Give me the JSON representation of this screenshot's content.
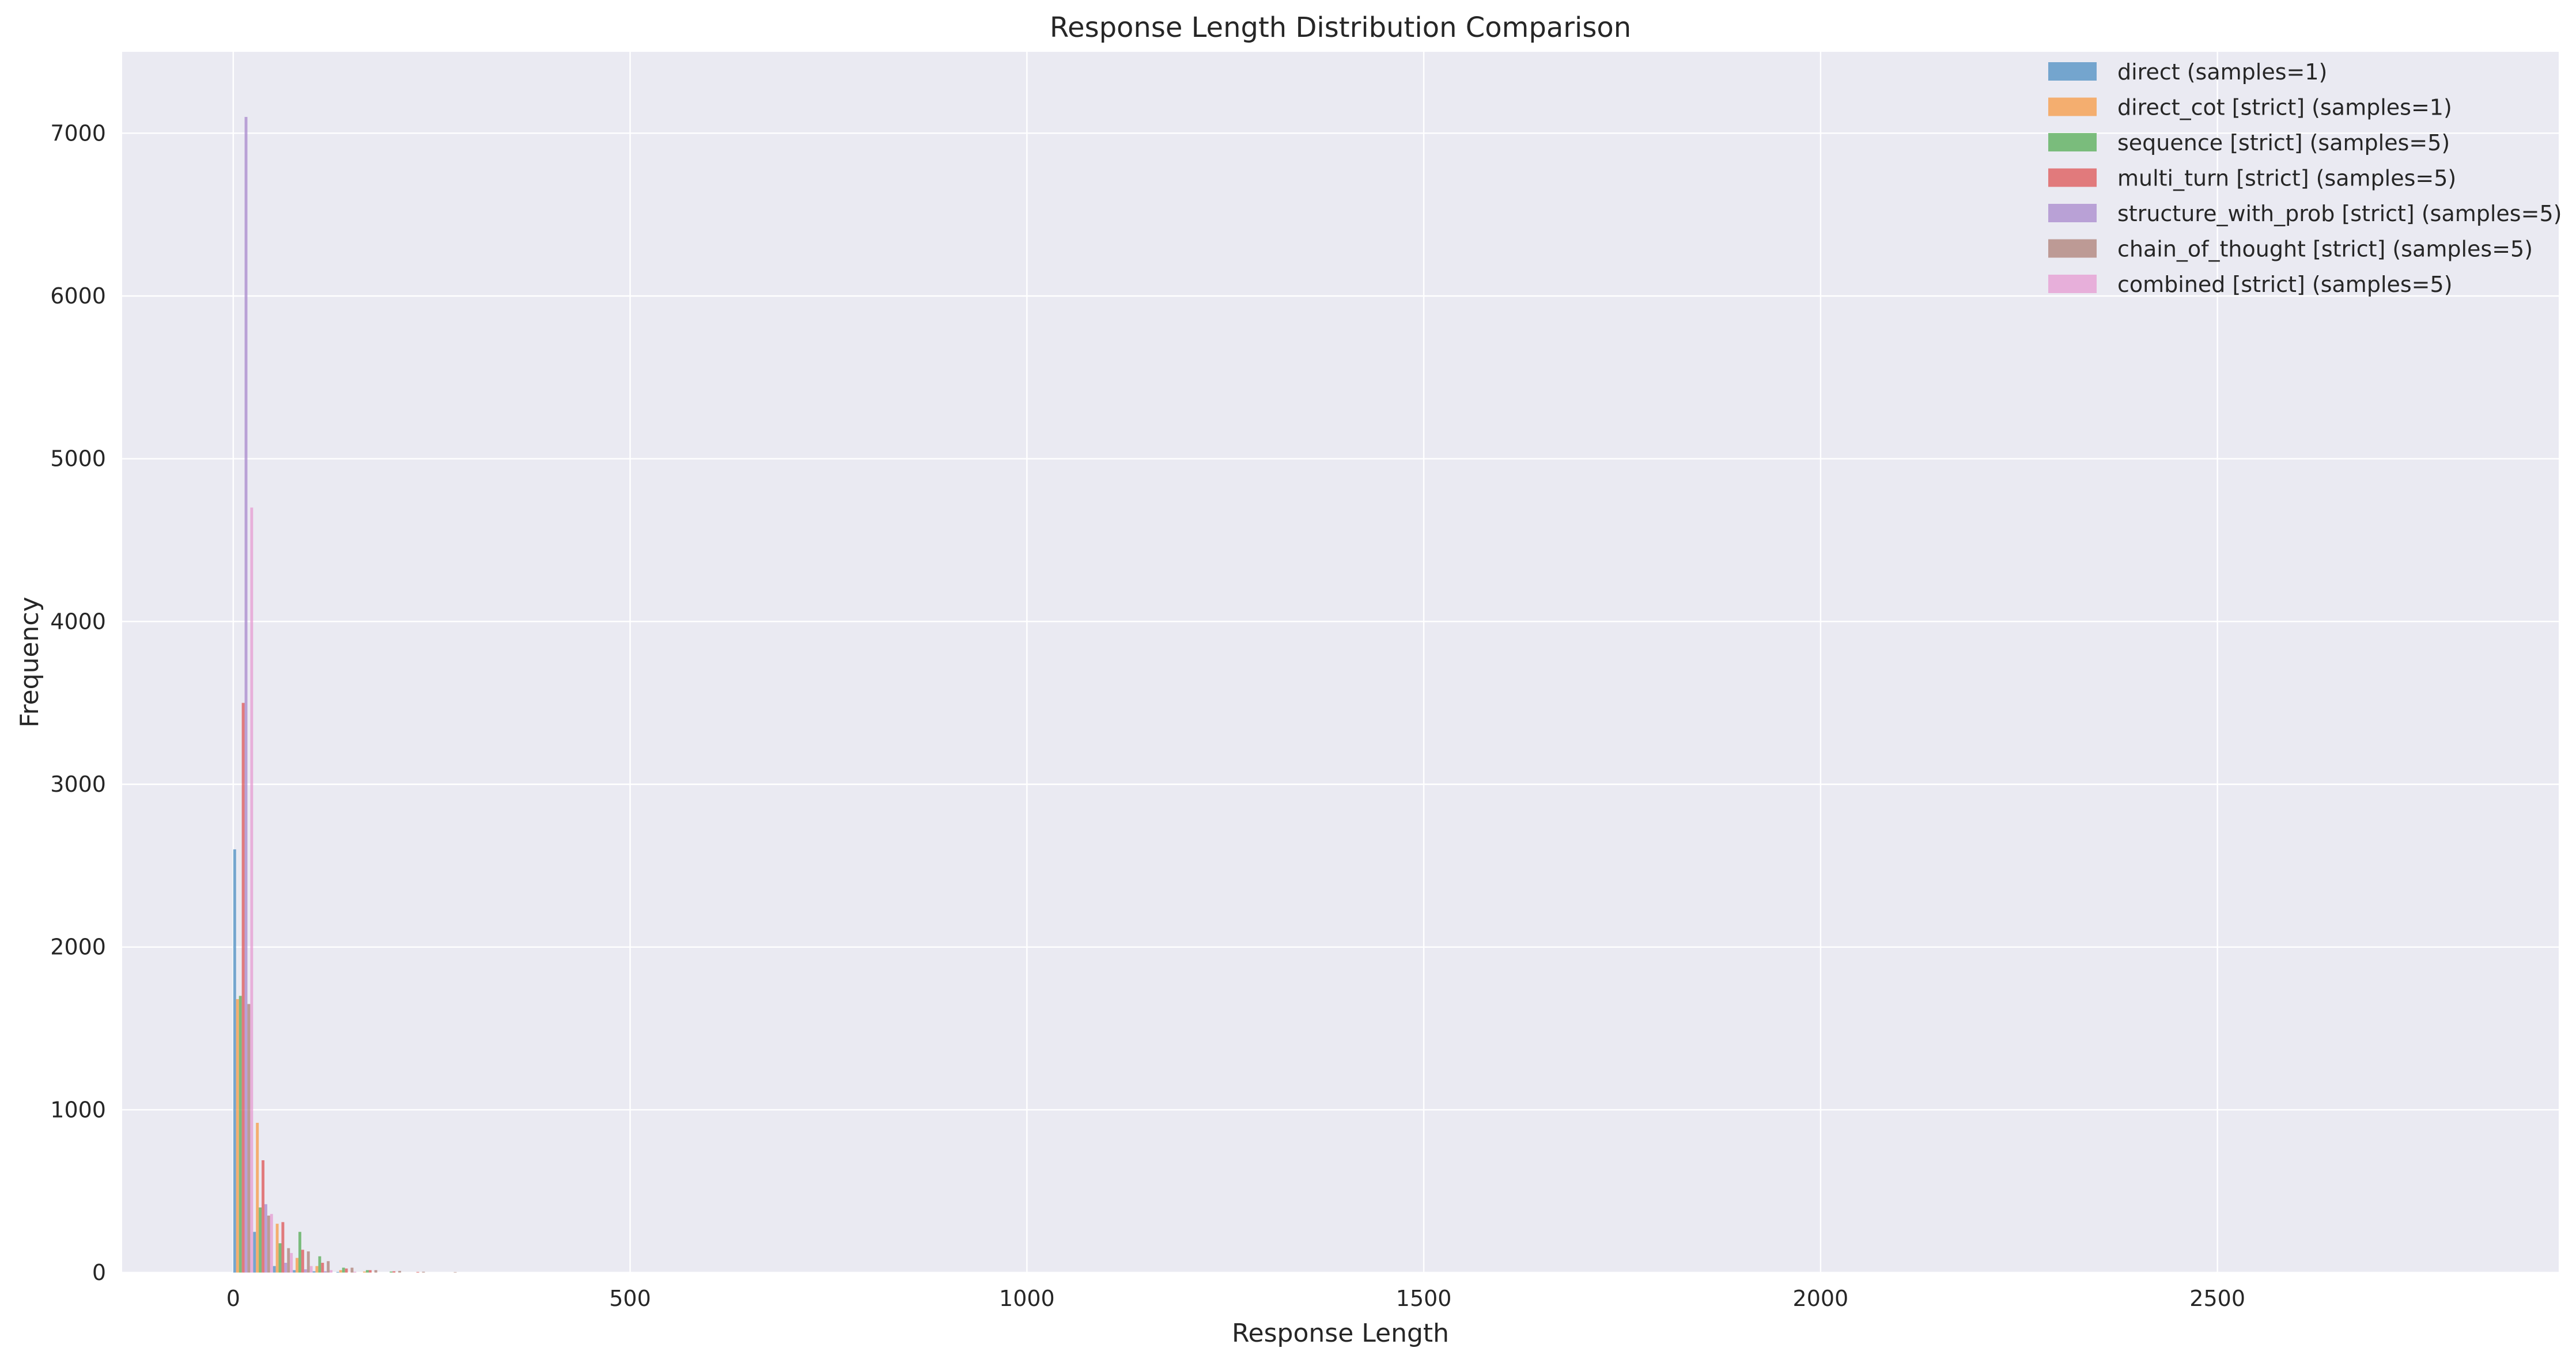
{
  "chart_data": {
    "type": "bar",
    "title": "Response Length Distribution Comparison",
    "xlabel": "Response Length",
    "ylabel": "Frequency",
    "xlim": [
      -140,
      2930
    ],
    "ylim": [
      0,
      7500
    ],
    "xticks": [
      0,
      500,
      1000,
      1500,
      2000,
      2500
    ],
    "yticks": [
      0,
      1000,
      2000,
      3000,
      4000,
      5000,
      6000,
      7000
    ],
    "grid": true,
    "legend_position": "top-right",
    "bar_alpha": 0.75,
    "series": [
      {
        "name": "direct (samples=1)",
        "color": "#4c8ec2",
        "bins": [
          [
            0,
            2600
          ],
          [
            25,
            250
          ],
          [
            50,
            40
          ],
          [
            75,
            15
          ],
          [
            100,
            8
          ],
          [
            130,
            4
          ]
        ]
      },
      {
        "name": "direct_cot [strict] (samples=1)",
        "color": "#f79943",
        "bins": [
          [
            0,
            1680
          ],
          [
            25,
            920
          ],
          [
            50,
            300
          ],
          [
            75,
            90
          ],
          [
            100,
            40
          ],
          [
            130,
            15
          ],
          [
            160,
            6
          ]
        ]
      },
      {
        "name": "sequence [strict] (samples=5)",
        "color": "#54ac54",
        "bins": [
          [
            0,
            1700
          ],
          [
            25,
            400
          ],
          [
            50,
            180
          ],
          [
            75,
            250
          ],
          [
            100,
            100
          ],
          [
            130,
            30
          ],
          [
            160,
            15
          ],
          [
            190,
            6
          ]
        ]
      },
      {
        "name": "multi_turn [strict] (samples=5)",
        "color": "#de5454",
        "bins": [
          [
            0,
            3500
          ],
          [
            25,
            690
          ],
          [
            50,
            310
          ],
          [
            75,
            140
          ],
          [
            100,
            60
          ],
          [
            130,
            25
          ],
          [
            160,
            15
          ],
          [
            190,
            8
          ],
          [
            220,
            4
          ]
        ]
      },
      {
        "name": "structure_with_prob [strict] (samples=5)",
        "color": "#a888cc",
        "bins": [
          [
            0,
            7100
          ],
          [
            25,
            420
          ],
          [
            50,
            60
          ],
          [
            75,
            20
          ],
          [
            100,
            8
          ]
        ]
      },
      {
        "name": "chain_of_thought [strict] (samples=5)",
        "color": "#ad7f76",
        "bins": [
          [
            0,
            1650
          ],
          [
            25,
            350
          ],
          [
            50,
            150
          ],
          [
            75,
            130
          ],
          [
            100,
            70
          ],
          [
            130,
            30
          ],
          [
            160,
            15
          ],
          [
            190,
            10
          ],
          [
            220,
            5
          ],
          [
            260,
            3
          ]
        ]
      },
      {
        "name": "combined [strict] (samples=5)",
        "color": "#e59bd2",
        "bins": [
          [
            0,
            4700
          ],
          [
            25,
            360
          ],
          [
            50,
            120
          ],
          [
            75,
            40
          ],
          [
            100,
            15
          ],
          [
            130,
            5
          ]
        ]
      }
    ]
  }
}
